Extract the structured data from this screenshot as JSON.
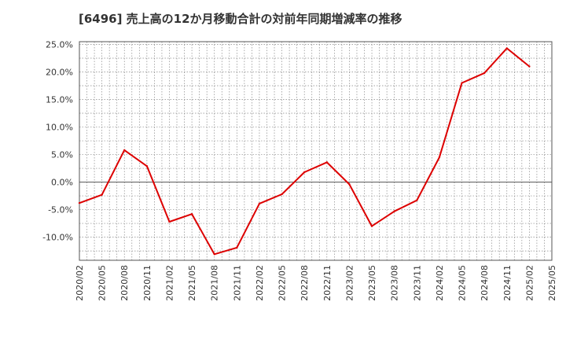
{
  "chart_data": {
    "type": "line",
    "title": "[6496]  売上高の12か月移動合計の対前年同期増減率の推移",
    "xlabel": "",
    "ylabel": "",
    "x_ticks": [
      "2020/02",
      "2020/05",
      "2020/08",
      "2020/11",
      "2021/02",
      "2021/05",
      "2021/08",
      "2021/11",
      "2022/02",
      "2022/05",
      "2022/08",
      "2022/11",
      "2023/02",
      "2023/05",
      "2023/08",
      "2023/11",
      "2024/02",
      "2024/05",
      "2024/08",
      "2024/11",
      "2025/02",
      "2025/05"
    ],
    "y_ticks": [
      25,
      20,
      15,
      10,
      5,
      0,
      -5,
      -10
    ],
    "y_tick_labels": [
      "25.0%",
      "20.0%",
      "15.0%",
      "10.0%",
      "5.0%",
      "0.0%",
      "-5.0%",
      "-10.0%"
    ],
    "ylim": [
      -14.2,
      25.5
    ],
    "grid": true,
    "series": [
      {
        "name": "増減率",
        "color": "#dd0000",
        "x": [
          "2020/02",
          "2020/05",
          "2020/08",
          "2020/11",
          "2021/02",
          "2021/05",
          "2021/08",
          "2021/11",
          "2022/02",
          "2022/05",
          "2022/08",
          "2022/11",
          "2023/02",
          "2023/05",
          "2023/08",
          "2023/11",
          "2024/02",
          "2024/05",
          "2024/08",
          "2024/11",
          "2025/02"
        ],
        "values": [
          -3.8,
          -2.3,
          5.8,
          2.9,
          -7.2,
          -5.8,
          -13.1,
          -11.9,
          -3.9,
          -2.2,
          1.8,
          3.6,
          -0.4,
          -8.0,
          -5.3,
          -3.3,
          4.5,
          18.0,
          19.8,
          24.3,
          21.0
        ]
      }
    ]
  }
}
